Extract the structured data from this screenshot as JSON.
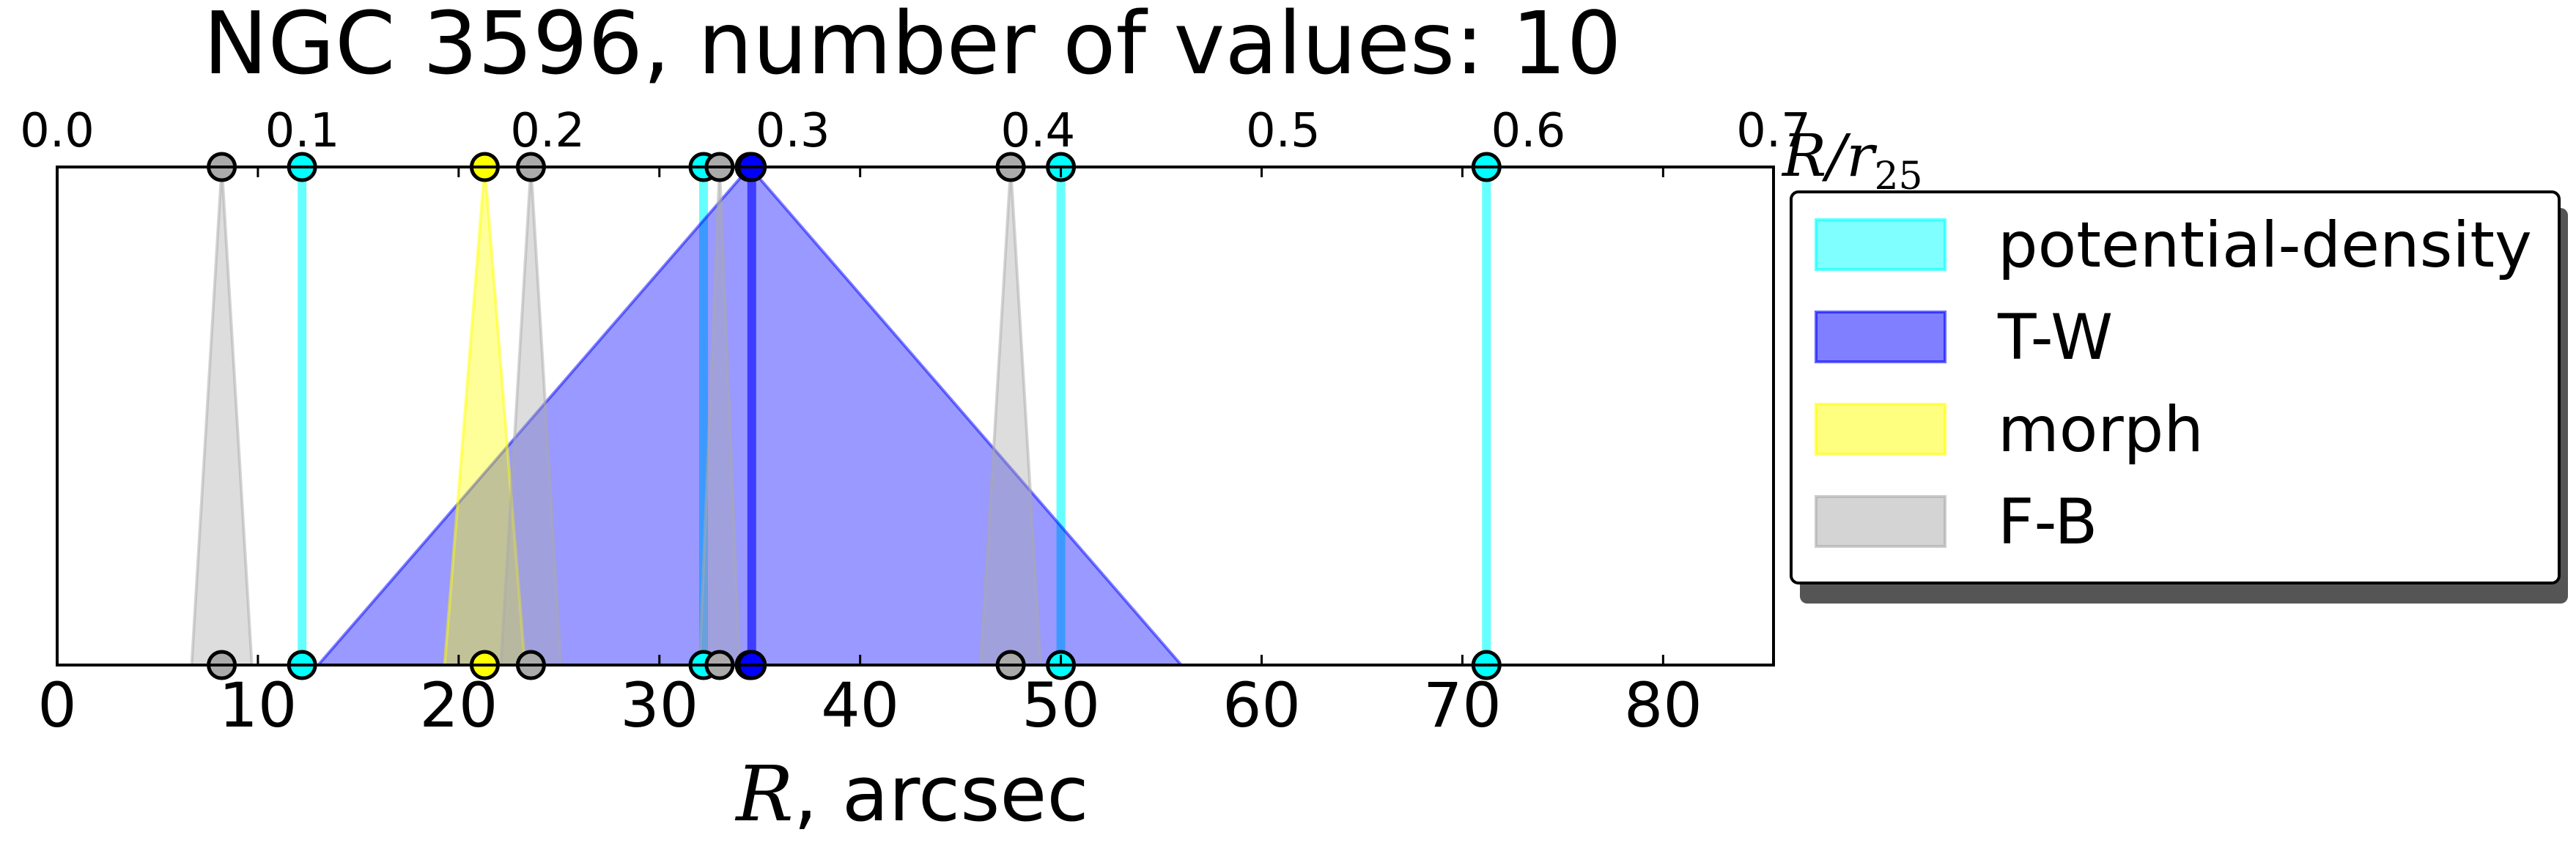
{
  "chart_data": {
    "type": "area",
    "title": "NGC 3596, number of values: 10",
    "xlabel": {
      "symbol": "R",
      "rest": ", arcsec"
    },
    "x2label": {
      "symbol": "R/r",
      "subscript": "25"
    },
    "xlim": [
      0,
      85.5
    ],
    "x2lim": [
      0,
      0.7
    ],
    "xticks": [
      "0",
      "10",
      "20",
      "30",
      "40",
      "50",
      "60",
      "70",
      "80"
    ],
    "x2ticks": [
      "0.0",
      "0.1",
      "0.2",
      "0.3",
      "0.4",
      "0.5",
      "0.6",
      "0.7"
    ],
    "grid": false,
    "legend_position": "right, outside",
    "colors": {
      "potential-density": "#00ffff",
      "T-W": "#0000ff",
      "morph": "#ffff00",
      "F-B": "#aaaaaa"
    },
    "series": [
      {
        "name": "potential-density",
        "markers": [
          {
            "center": 12.2,
            "half_width": 0
          },
          {
            "center": 32.2,
            "half_width": 0
          },
          {
            "center": 50.0,
            "half_width": 0
          },
          {
            "center": 71.2,
            "half_width": 0
          }
        ]
      },
      {
        "name": "T-W",
        "markers": [
          {
            "center": 34.5,
            "half_width": 21.5
          },
          {
            "center": 34.6,
            "half_width": 0
          }
        ]
      },
      {
        "name": "morph",
        "markers": [
          {
            "center": 21.3,
            "half_width": 2.0
          }
        ]
      },
      {
        "name": "F-B",
        "markers": [
          {
            "center": 8.2,
            "half_width": 1.5
          },
          {
            "center": 23.6,
            "half_width": 1.5
          },
          {
            "center": 33.0,
            "half_width": 1.0
          },
          {
            "center": 47.5,
            "half_width": 1.5
          }
        ]
      }
    ],
    "legend": [
      "potential-density",
      "T-W",
      "morph",
      "F-B"
    ]
  }
}
